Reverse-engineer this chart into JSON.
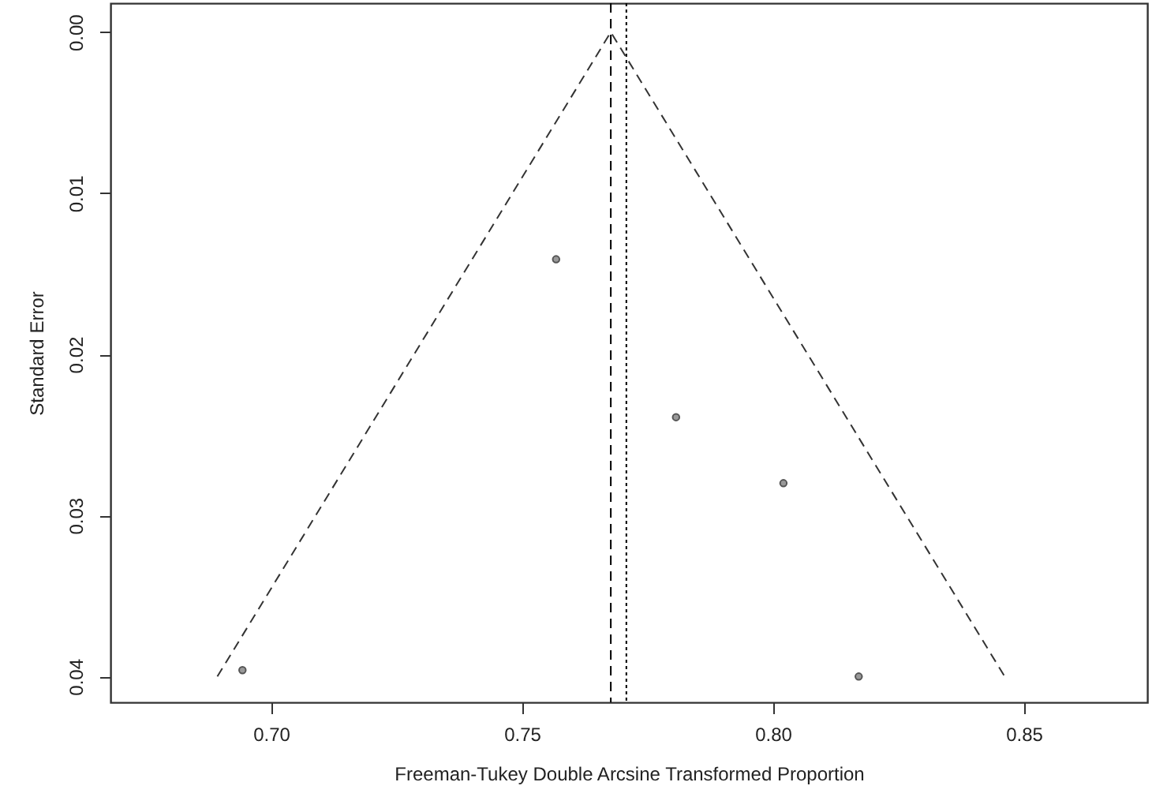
{
  "chart_data": {
    "type": "scatter",
    "xlabel": "Freeman-Tukey Double Arcsine Transformed Proportion",
    "ylabel": "Standard Error",
    "xlim": [
      0.668,
      0.8746
    ],
    "xticks": [
      {
        "value": 0.7,
        "label": "0.70"
      },
      {
        "value": 0.75,
        "label": "0.75"
      },
      {
        "value": 0.8,
        "label": "0.80"
      },
      {
        "value": 0.85,
        "label": "0.85"
      }
    ],
    "ylim": [
      0.0416,
      -0.0018
    ],
    "yticks": [
      {
        "value": 0,
        "label": "0.00"
      },
      {
        "value": 0.01,
        "label": "0.01"
      },
      {
        "value": 0.02,
        "label": "0.02"
      },
      {
        "value": 0.03,
        "label": "0.03"
      },
      {
        "value": 0.04,
        "label": "0.04"
      }
    ],
    "grid": false,
    "marker": "circle",
    "series": [
      {
        "color": "#555555",
        "x": [
          0.6943,
          0.7568,
          0.7807,
          0.8021,
          0.8171
        ],
        "values": [
          0.0396,
          0.0141,
          0.0239,
          0.028,
          0.04
        ]
      },
      {
        "type": "line",
        "color": "#333333",
        "line_style": "dashed",
        "marker": "none",
        "x": [
          0.6893,
          0.7677,
          0.8462
        ],
        "values": [
          0.04,
          0,
          0.04
        ]
      }
    ],
    "ref_lines": [
      {
        "axis": "x",
        "value": 0.7677,
        "color": "#000000",
        "line_style": "dashed"
      },
      {
        "axis": "x",
        "value": 0.7708,
        "color": "#000000",
        "line_style": "dotted"
      }
    ]
  }
}
